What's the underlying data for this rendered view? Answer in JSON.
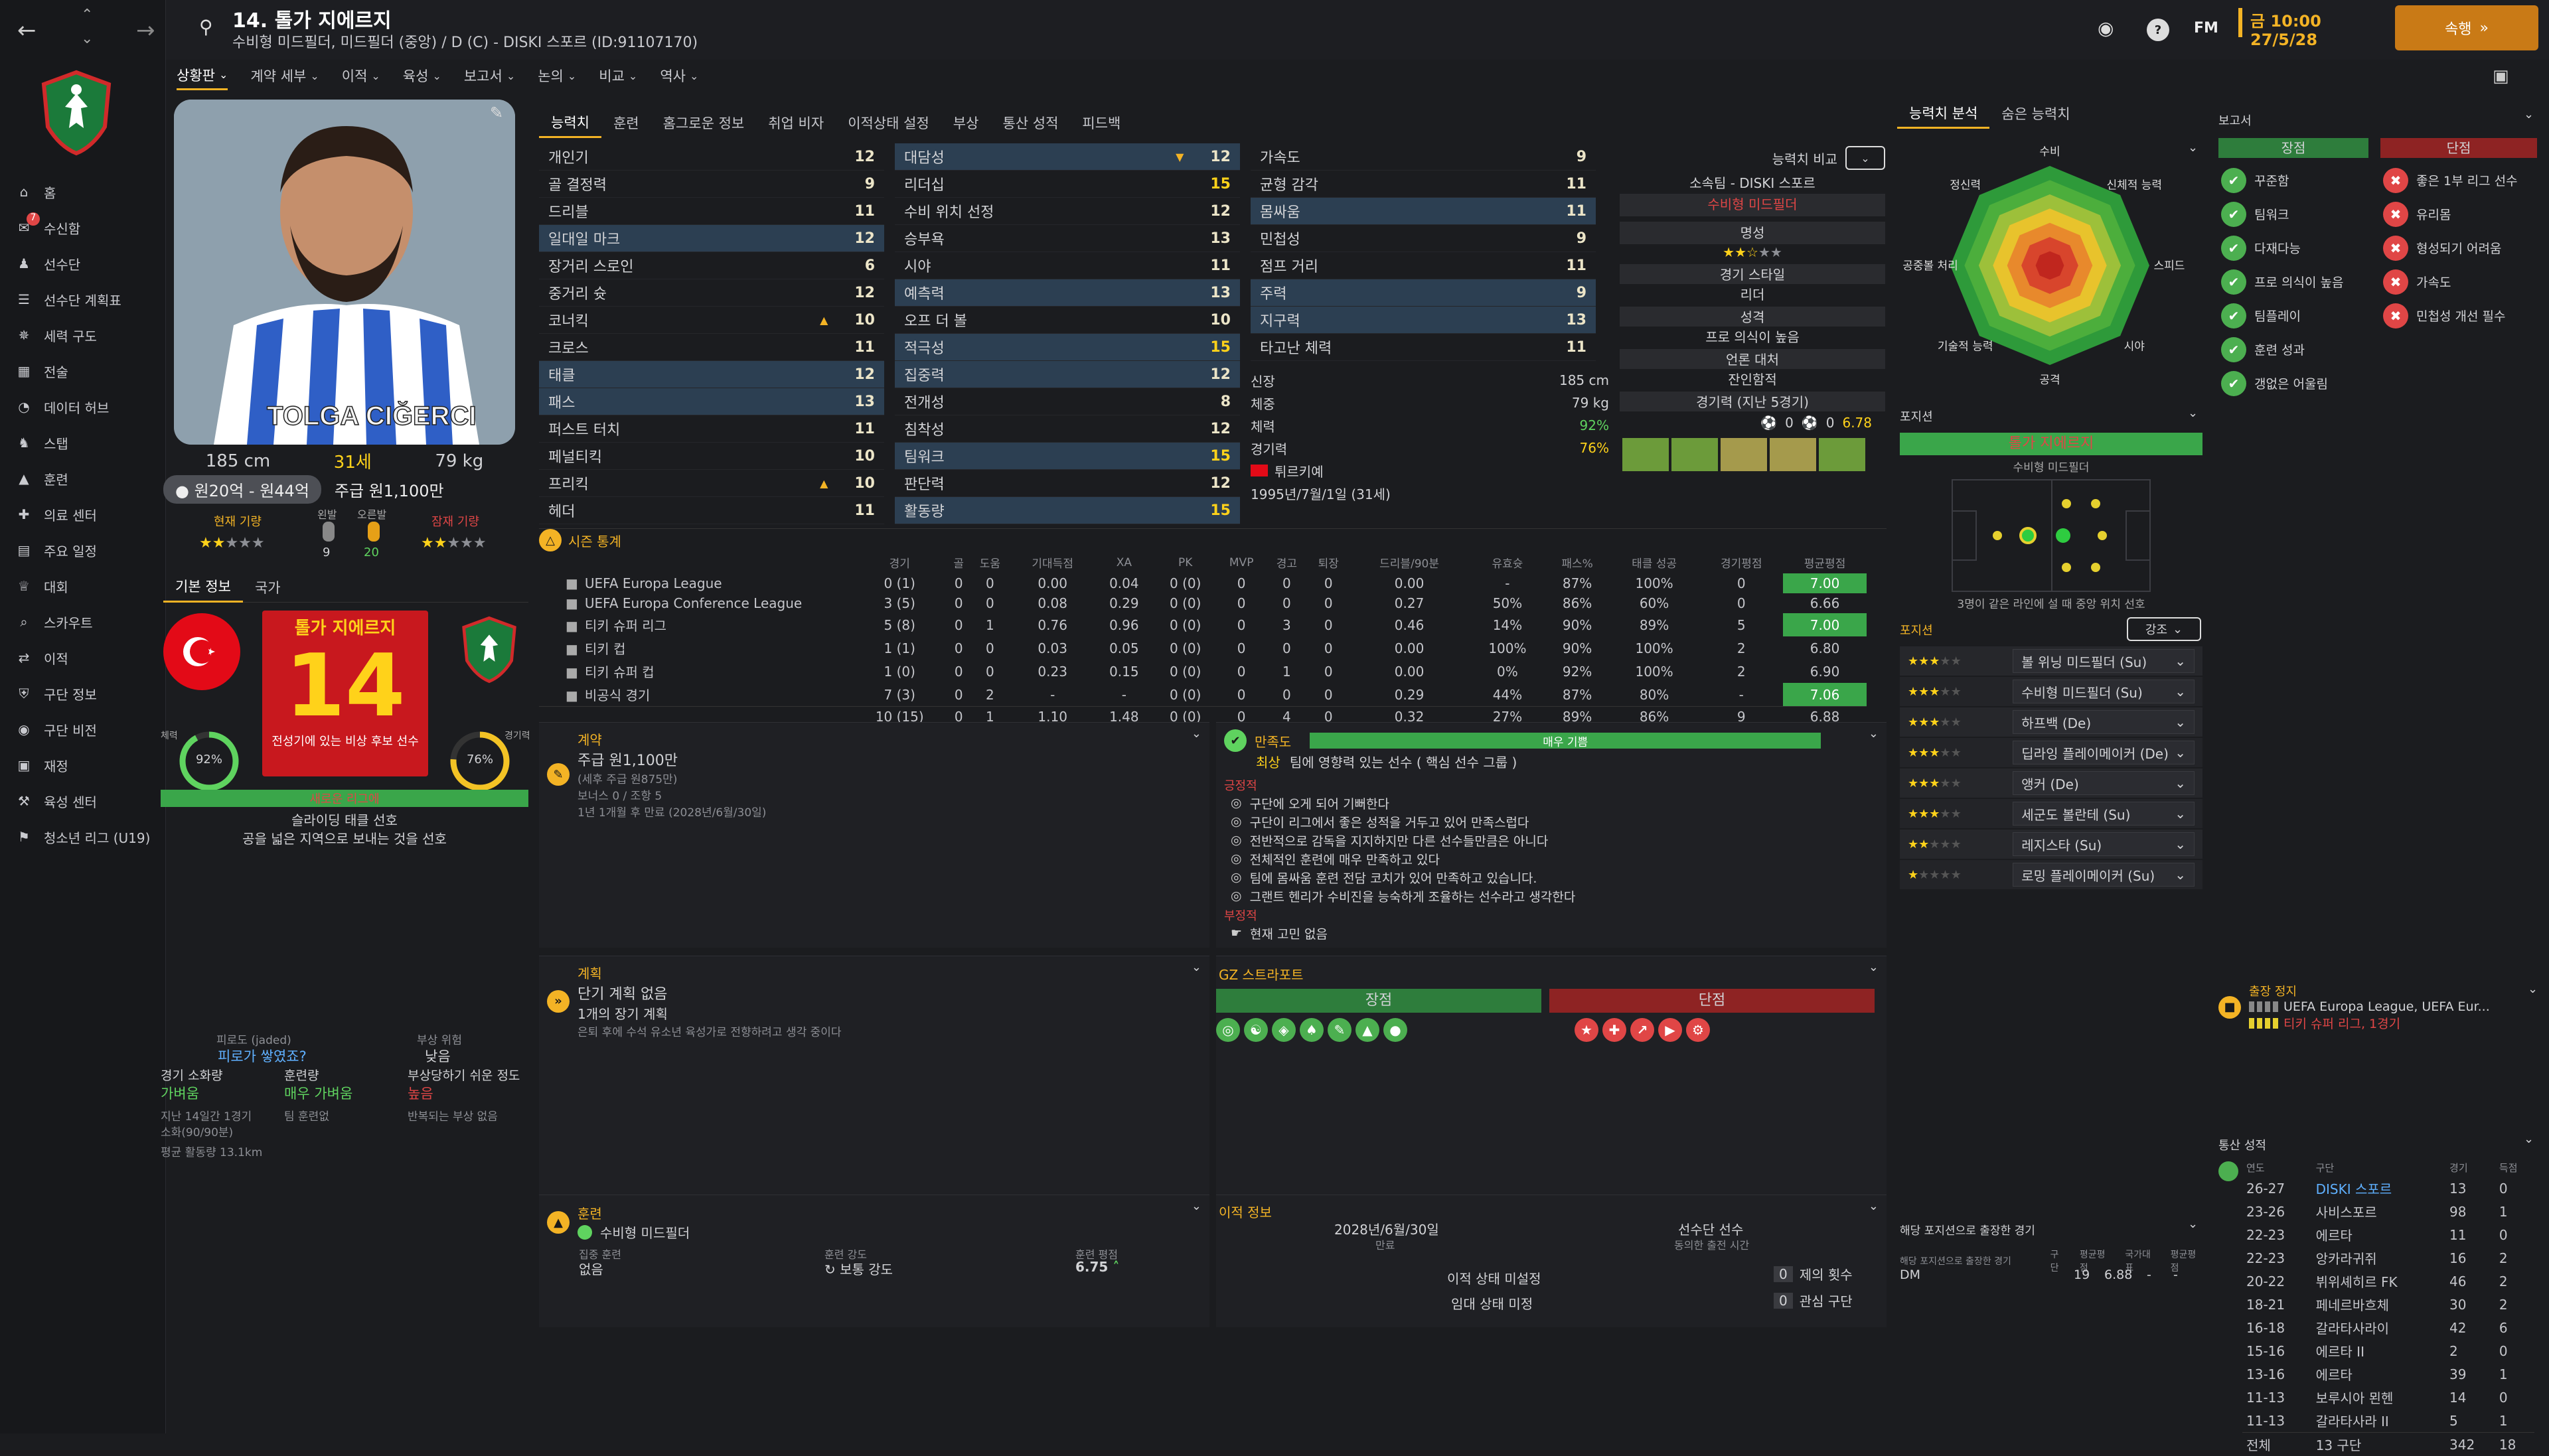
{
  "topbar": {
    "player_title": "14. 톨가 지에르지",
    "player_sub": "수비형 미드필더, 미드필더 (중앙) / D (C) - DISKI 스포르 (ID:91107170)",
    "time": "금 10:00",
    "date": "27/5/28",
    "continue_label": "속행",
    "fm_label": "FM",
    "help_label": "?"
  },
  "subnav": [
    "상황판",
    "계약 세부",
    "이적",
    "육성",
    "보고서",
    "논의",
    "비교",
    "역사"
  ],
  "sidebar": {
    "items": [
      {
        "label": "홈",
        "icon": "home-icon"
      },
      {
        "label": "수신함",
        "icon": "inbox-icon",
        "badge": "7"
      },
      {
        "label": "선수단",
        "icon": "squad-icon"
      },
      {
        "label": "선수단 계획표",
        "icon": "plan-icon"
      },
      {
        "label": "세력 구도",
        "icon": "dynamics-icon"
      },
      {
        "label": "전술",
        "icon": "tactics-icon"
      },
      {
        "label": "데이터 허브",
        "icon": "data-icon"
      },
      {
        "label": "스탭",
        "icon": "staff-icon"
      },
      {
        "label": "훈련",
        "icon": "training-icon"
      },
      {
        "label": "의료 센터",
        "icon": "medical-icon"
      },
      {
        "label": "주요 일정",
        "icon": "calendar-icon"
      },
      {
        "label": "대회",
        "icon": "trophy-icon"
      },
      {
        "label": "스카우트",
        "icon": "scout-icon"
      },
      {
        "label": "이적",
        "icon": "transfer-icon"
      },
      {
        "label": "구단 정보",
        "icon": "club-icon"
      },
      {
        "label": "구단 비전",
        "icon": "vision-icon"
      },
      {
        "label": "재정",
        "icon": "finance-icon"
      },
      {
        "label": "육성 센터",
        "icon": "development-icon"
      },
      {
        "label": "청소년 리그 (U19)",
        "icon": "youth-icon"
      }
    ]
  },
  "profile": {
    "height": "185 cm",
    "age": "31세",
    "weight": "79 kg",
    "value": "원20억 - 원44억",
    "wage_label": "주급 원1,100만",
    "cur_ability": "현재 기량",
    "pot_ability": "잠재 기량",
    "left_foot": "왼발",
    "left_foot_val": "9",
    "right_foot": "오른발",
    "right_foot_val": "20",
    "tab_basic": "기본 정보",
    "tab_nation": "국가",
    "shirt_name": "톨가 지에르지",
    "shirt_number": "14",
    "shirt_note": "전성기에 있는 비상 후보 선수",
    "fitness_label": "체력",
    "fitness": "92%",
    "fitness_val": 0.92,
    "sharpness_label": "경기력",
    "sharpness": "76%",
    "sharpness_val": 0.76,
    "mentor_label": "새로운 리그에",
    "pref1": "슬라이딩 태클 선호",
    "pref2": "공을 넓은 지역으로 보내는 것을 선호",
    "fatigue_title": "피로도 (jaded)",
    "fatigue_q": "피로가 쌓였죠?",
    "injury_title": "부상 위험",
    "injury_val": "낮음",
    "label_match_load": "경기 소화량",
    "val_match_load": "가벼움",
    "label_training": "훈련량",
    "val_training": "매우 가벼움",
    "label_injury_prone": "부상당하기 쉬운 정도",
    "val_injury_prone": "높음",
    "note1": "지난 14일간 1경기",
    "note2": "소화(90/90분)",
    "note3": "팀 훈련없",
    "note4": "반복되는 부상 없음",
    "avg_dist": "평균 활동량 13.1km"
  },
  "attr_tabs": [
    "능력치",
    "훈련",
    "홈그로운 정보",
    "취업 비자",
    "이적상태 설정",
    "부상",
    "통산 성적",
    "피드백"
  ],
  "technical": [
    {
      "n": "개인기",
      "v": "12"
    },
    {
      "n": "골 결정력",
      "v": "9"
    },
    {
      "n": "드리블",
      "v": "11"
    },
    {
      "n": "일대일 마크",
      "v": "12",
      "hl": "1"
    },
    {
      "n": "장거리 스로인",
      "v": "6"
    },
    {
      "n": "중거리 슛",
      "v": "12"
    },
    {
      "n": "코너킥",
      "v": "10",
      "up": "1"
    },
    {
      "n": "크로스",
      "v": "11"
    },
    {
      "n": "태클",
      "v": "12",
      "hl": "1"
    },
    {
      "n": "패스",
      "v": "13",
      "hl": "1"
    },
    {
      "n": "퍼스트 터치",
      "v": "11"
    },
    {
      "n": "페널티킥",
      "v": "10"
    },
    {
      "n": "프리킥",
      "v": "10",
      "up": "1"
    },
    {
      "n": "헤더",
      "v": "11"
    }
  ],
  "mental": [
    {
      "n": "대담성",
      "v": "12",
      "hl": "1",
      "dn": "1"
    },
    {
      "n": "리더십",
      "v": "15"
    },
    {
      "n": "수비 위치 선정",
      "v": "12"
    },
    {
      "n": "승부욕",
      "v": "13"
    },
    {
      "n": "시야",
      "v": "11"
    },
    {
      "n": "예측력",
      "v": "13",
      "hl": "1"
    },
    {
      "n": "오프 더 볼",
      "v": "10"
    },
    {
      "n": "적극성",
      "v": "15",
      "hl": "1"
    },
    {
      "n": "집중력",
      "v": "12",
      "hl": "1"
    },
    {
      "n": "전개성",
      "v": "8"
    },
    {
      "n": "침착성",
      "v": "12"
    },
    {
      "n": "팀워크",
      "v": "15",
      "hl": "1"
    },
    {
      "n": "판단력",
      "v": "12"
    },
    {
      "n": "활동량",
      "v": "15",
      "hl": "1"
    }
  ],
  "physical": [
    {
      "n": "가속도",
      "v": "9"
    },
    {
      "n": "균형 감각",
      "v": "11"
    },
    {
      "n": "몸싸움",
      "v": "11",
      "hl": "1"
    },
    {
      "n": "민첩성",
      "v": "9"
    },
    {
      "n": "점프 거리",
      "v": "11"
    },
    {
      "n": "주력",
      "v": "9",
      "hl": "1"
    },
    {
      "n": "지구력",
      "v": "13",
      "hl": "1"
    },
    {
      "n": "타고난 체력",
      "v": "11"
    }
  ],
  "bio": {
    "height_l": "신장",
    "height_v": "185 cm",
    "weight_l": "체중",
    "weight_v": "79 kg",
    "fit_l": "체력",
    "fit_v": "92%",
    "sharp_l": "경기력",
    "sharp_v": "76%",
    "nation": "튀르키예",
    "dob": "1995년/7월/1일 (31세)"
  },
  "compare": {
    "label": "능력치 비교",
    "club": "소속팀 - DISKI 스포르",
    "pos": "수비형 미드필더",
    "fame": "명성",
    "style": "경기 스타일",
    "style_v": "리더",
    "personality": "성격",
    "personality_v": "프로 의식이 높음",
    "media": "언론 대처",
    "media_v": "잔인함적",
    "form": "경기력 (지난 5경기)",
    "rating": "6.78",
    "zero": "0"
  },
  "season": {
    "title": "시즌 통계",
    "headers": [
      "경기",
      "골",
      "도움",
      "기대득점",
      "XA",
      "PK",
      "MVP",
      "경고",
      "퇴장",
      "드리블/90분",
      "유효슛",
      "패스%",
      "태클 성공",
      "경기평점",
      "평균평점"
    ],
    "rows": [
      {
        "c": "UEFA Europa League",
        "d": [
          "0 (1)",
          "0",
          "0",
          "0.00",
          "0.04",
          "0 (0)",
          "0",
          "0",
          "0",
          "0.00",
          "-",
          "87%",
          "100%",
          "0",
          "7.00"
        ]
      },
      {
        "c": "UEFA Europa Conference League",
        "d": [
          "3 (5)",
          "0",
          "0",
          "0.08",
          "0.29",
          "0 (0)",
          "0",
          "0",
          "0",
          "0.27",
          "50%",
          "86%",
          "60%",
          "0",
          "6.66"
        ]
      },
      {
        "c": "티키 슈퍼 리그",
        "d": [
          "5 (8)",
          "0",
          "1",
          "0.76",
          "0.96",
          "0 (0)",
          "0",
          "3",
          "0",
          "0.46",
          "14%",
          "90%",
          "89%",
          "5",
          "7.00"
        ]
      },
      {
        "c": "티키 컵",
        "d": [
          "1 (1)",
          "0",
          "0",
          "0.03",
          "0.05",
          "0 (0)",
          "0",
          "0",
          "0",
          "0.00",
          "100%",
          "90%",
          "100%",
          "2",
          "6.80"
        ]
      },
      {
        "c": "티키 슈퍼 컵",
        "d": [
          "1 (0)",
          "0",
          "0",
          "0.23",
          "0.15",
          "0 (0)",
          "0",
          "1",
          "0",
          "0.00",
          "0%",
          "92%",
          "100%",
          "2",
          "6.90"
        ]
      },
      {
        "c": "비공식 경기",
        "d": [
          "7 (3)",
          "0",
          "2",
          "-",
          "-",
          "0 (0)",
          "0",
          "0",
          "0",
          "0.29",
          "44%",
          "87%",
          "80%",
          "-",
          "7.06"
        ]
      }
    ],
    "total": [
      "10 (15)",
      "0",
      "1",
      "1.10",
      "1.48",
      "0 (0)",
      "0",
      "4",
      "0",
      "0.32",
      "27%",
      "89%",
      "86%",
      "9",
      "6.88"
    ]
  },
  "contract": {
    "title": "계약",
    "wage": "주급 원1,100만",
    "wage_sub": "(세후 주급 원875만)",
    "bonus": "보너스 0 / 조항 5",
    "expiry": "1년 1개월 후 만료 (2028년/6월/30일)"
  },
  "satisfaction": {
    "title": "만족도",
    "level": "매우 기쁨",
    "best": "최상",
    "influence": "팀에 영향력 있는 선수 ( 핵심 선수 그룹 )",
    "pos_label": "긍정적",
    "pos": [
      "구단에 오게 되어 기뻐한다",
      "구단이 리그에서 좋은 성적을 거두고 있어 만족스럽다",
      "전반적으로 감독을 지지하지만 다른 선수들만큼은 아니다",
      "전체적인 훈련에 매우 만족하고 있다",
      "팀에 몸싸움 훈련 전담 코치가 있어 만족하고 있습니다.",
      "그랜트 헨리가 수비진을 능숙하게 조율하는 선수라고 생각한다"
    ],
    "neg_label": "부정적",
    "neg": [
      "현재 고민 없음"
    ]
  },
  "plans": {
    "title": "계획",
    "short": "단기 계획 없음",
    "long": "1개의 장기 계획",
    "long_sub": "은퇴 후에 수석 유소년 육성가로 전향하려고 생각 중이다"
  },
  "gz": {
    "title": "GZ 스트라포트",
    "strengths": "장점",
    "weaknesses": "단점"
  },
  "training": {
    "title": "훈련",
    "role": "수비형 미드필더",
    "extra_label": "집중 훈련",
    "extra_val": "없음",
    "intensity_label": "훈련 강도",
    "intensity_val": "보통 강도",
    "rating_label": "훈련 평점",
    "rating_val": "6.75"
  },
  "transfer": {
    "title": "이적 정보",
    "expiry": "2028년/6월/30일",
    "expiry_l": "만료",
    "squad_label": "선수단 선수",
    "squad_sub": "동의한 출전 시간",
    "status1": "이적 상태 미설정",
    "status2": "임대 상태 미정",
    "offers": "제의 횟수",
    "interest": "관심 구단",
    "offers_v": "0",
    "interest_v": "0"
  },
  "analysis": {
    "tab1": "능력치 분석",
    "tab2": "숨은 능력치",
    "labels": [
      "수비",
      "신체적 능력",
      "스피드",
      "시야",
      "공격",
      "기술적 능력",
      "공중볼 처리",
      "정신력"
    ]
  },
  "position": {
    "title": "포지션",
    "name": "톨가 지에르지",
    "sub": "수비형 미드필더",
    "note": "3명이 같은 라인에 설 때 중앙 위치 선호",
    "roles_title": "포지션",
    "emph": "강조",
    "roles": [
      {
        "r": "볼 위닝 미드필더 (Su)",
        "s": 3
      },
      {
        "r": "수비형 미드필더 (Su)",
        "s": 3
      },
      {
        "r": "하프백 (De)",
        "s": 3
      },
      {
        "r": "딥라잉 플레이메이커 (De)",
        "s": 3
      },
      {
        "r": "앵커 (De)",
        "s": 3
      },
      {
        "r": "세군도 볼란테 (Su)",
        "s": 3
      },
      {
        "r": "레지스타 (Su)",
        "s": 2
      },
      {
        "r": "로밍 플레이메이커 (Su)",
        "s": 1
      }
    ]
  },
  "report": {
    "title": "보고서",
    "strengths": "장점",
    "weaknesses": "단점",
    "pros": [
      "꾸준함",
      "팀워크",
      "다재다능",
      "프로 의식이 높음",
      "팀플레이",
      "훈련 성과",
      "갱없은 어울림"
    ],
    "cons": [
      "좋은 1부 리그 선수",
      "유리몸",
      "형성되기 어려움",
      "가속도",
      "민첩성 개선 필수"
    ]
  },
  "suspension": {
    "title": "출장 정지",
    "line1": "UEFA Europa League, UEFA Eur...",
    "line2": "티키 슈퍼 리그, 1경기"
  },
  "pos_apps": {
    "title": "해당 포지션으로 출장한 경기",
    "h1": "해당 포지션으로 출장한 경기",
    "h2": "구단",
    "h3": "평균평점",
    "h4": "국가대표",
    "h5": "평균평점",
    "pos": "DM",
    "apps": "19",
    "avg": "6.88",
    "intl": "-",
    "intl_avg": "-"
  },
  "career": {
    "title": "통산 성적",
    "h": [
      "연도",
      "구단",
      "경기",
      "득점"
    ],
    "rows": [
      [
        "26-27",
        "DISKI 스포르",
        "13",
        "0"
      ],
      [
        "23-26",
        "사비스포르",
        "98",
        "1"
      ],
      [
        "22-23",
        "에르타",
        "11",
        "0"
      ],
      [
        "22-23",
        "앙카라귀쥐",
        "16",
        "2"
      ],
      [
        "20-22",
        "뷔위셰히르 FK",
        "46",
        "2"
      ],
      [
        "18-21",
        "페네르바흐체",
        "30",
        "2"
      ],
      [
        "16-18",
        "갈라타사라이",
        "42",
        "6"
      ],
      [
        "15-16",
        "에르타 II",
        "2",
        "0"
      ],
      [
        "13-16",
        "에르타",
        "39",
        "1"
      ],
      [
        "11-13",
        "보루시아 묀헨",
        "14",
        "0"
      ],
      [
        "11-13",
        "갈라타사라 II",
        "5",
        "1"
      ]
    ],
    "total_l": "전체",
    "total_c": "13 구단",
    "total_a": "342",
    "total_g": "18"
  },
  "colors": {
    "accent": "#f3b325",
    "green": "#5fd35f",
    "red": "#e04646"
  }
}
